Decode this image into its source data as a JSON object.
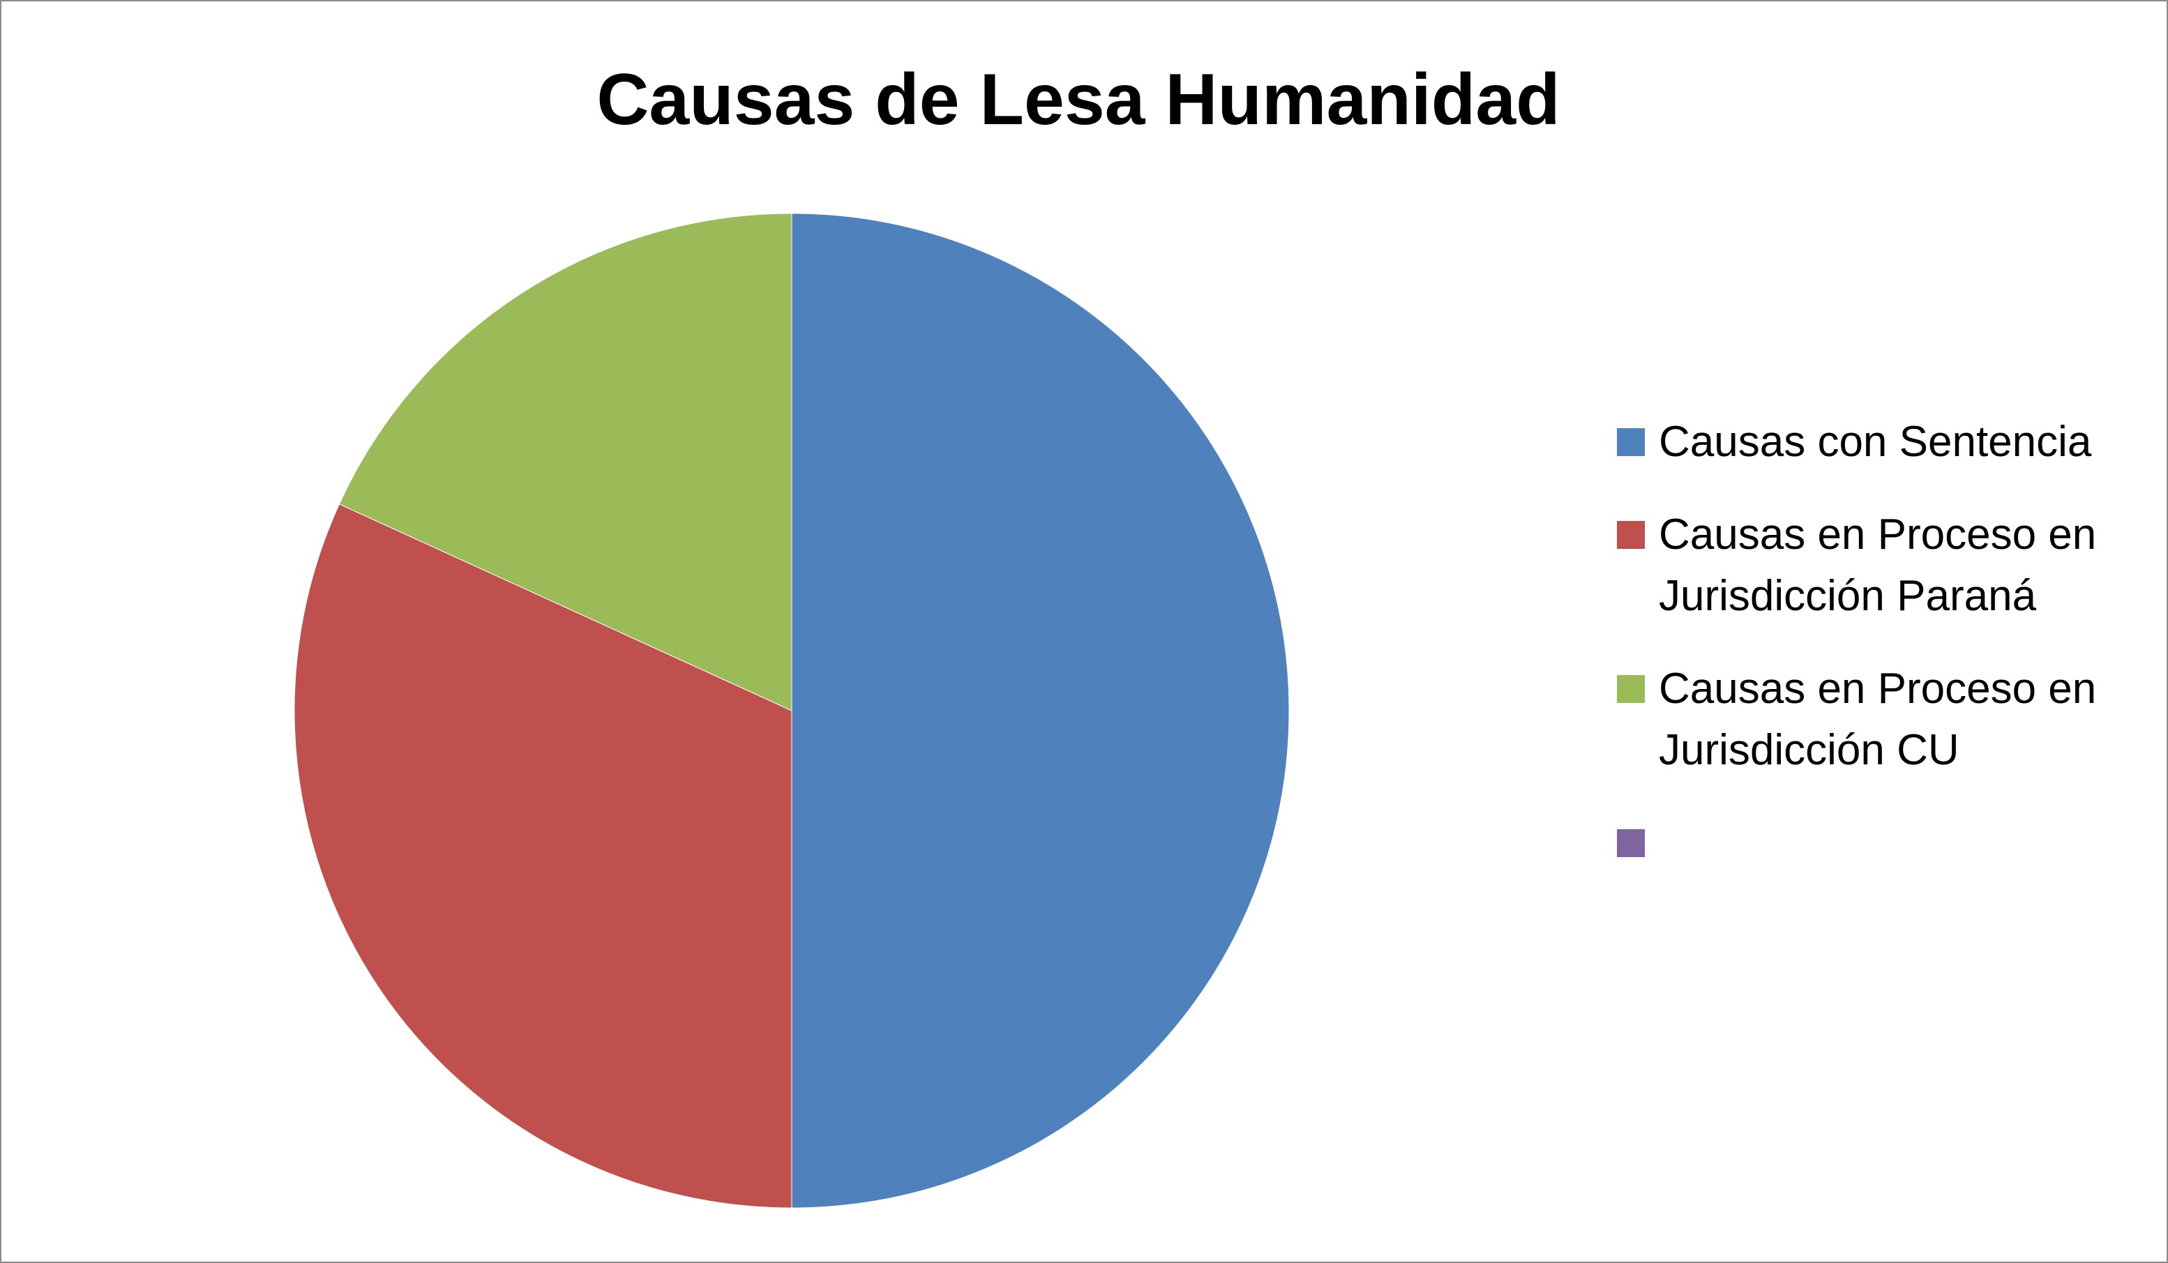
{
  "chart_data": {
    "type": "pie",
    "title": "Causas de Lesa Humanidad",
    "categories": [
      "Causas con Sentencia",
      "Causas en Proceso en Jurisdicción Paraná",
      "Causas en Proceso en Jurisdicción CU",
      null
    ],
    "values": [
      11,
      7,
      4,
      0
    ],
    "colors": [
      "#4f81bd",
      "#c0504d",
      "#9bbb59",
      "#8064a2"
    ],
    "legend": "right"
  }
}
